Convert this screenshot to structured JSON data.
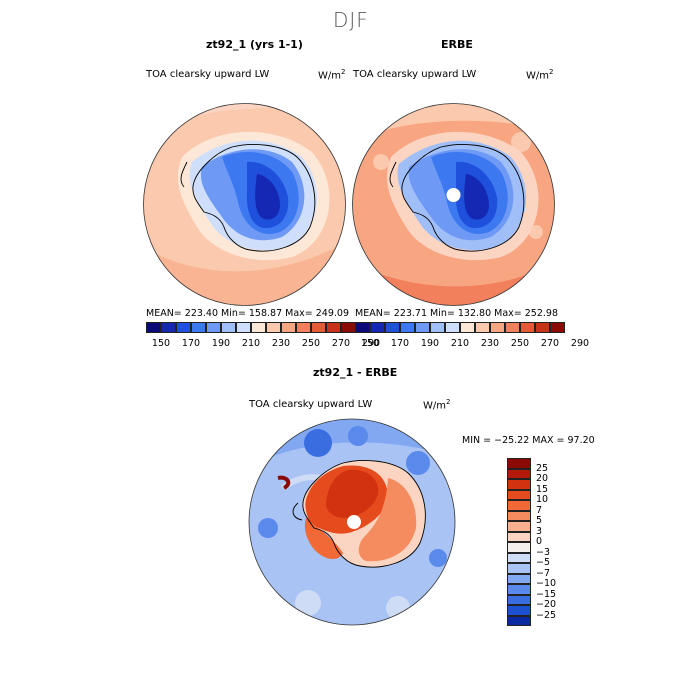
{
  "figure": {
    "main_title": "DJF"
  },
  "panels": [
    {
      "id": "model",
      "title": "zt92_1 (yrs 1-1)",
      "variable": "TOA clearsky upward LW",
      "units_base": "W/m",
      "units_exp": "2",
      "stats": "MEAN= 223.40   Min= 158.87   Max= 249.09"
    },
    {
      "id": "obs",
      "title": "ERBE",
      "variable": "TOA clearsky upward LW",
      "units_base": "W/m",
      "units_exp": "2",
      "stats": "MEAN= 223.71   Min= 132.80   Max= 252.98"
    }
  ],
  "diff_panel": {
    "title": "zt92_1 - ERBE",
    "variable": "TOA clearsky upward LW",
    "units_base": "W/m",
    "units_exp": "2",
    "stats": "MIN = −25.22  MAX =  97.20"
  },
  "chart_data": [
    {
      "type": "heatmap",
      "title": "zt92_1 (yrs 1-1)",
      "projection": "south polar stereographic",
      "colorbar": {
        "orientation": "horizontal",
        "tick_labels": [
          "150",
          "170",
          "190",
          "210",
          "230",
          "250",
          "270",
          "290"
        ],
        "colors": [
          "#0a0a78",
          "#1428b4",
          "#1e50dc",
          "#3c78f0",
          "#6e9af5",
          "#a0bef8",
          "#cfdffb",
          "#fde8d8",
          "#fbc9ad",
          "#f8a682",
          "#f2805c",
          "#e55a37",
          "#c8321a",
          "#8c0a05"
        ]
      },
      "stats": {
        "mean": 223.4,
        "min": 158.87,
        "max": 249.09
      }
    },
    {
      "type": "heatmap",
      "title": "ERBE",
      "projection": "south polar stereographic",
      "colorbar": {
        "orientation": "horizontal",
        "tick_labels": [
          "150",
          "170",
          "190",
          "210",
          "230",
          "250",
          "270",
          "290"
        ],
        "colors": [
          "#0a0a78",
          "#1428b4",
          "#1e50dc",
          "#3c78f0",
          "#6e9af5",
          "#a0bef8",
          "#cfdffb",
          "#fde8d8",
          "#fbc9ad",
          "#f8a682",
          "#f2805c",
          "#e55a37",
          "#c8321a",
          "#8c0a05"
        ]
      },
      "stats": {
        "mean": 223.71,
        "min": 132.8,
        "max": 252.98
      }
    },
    {
      "type": "heatmap",
      "title": "zt92_1 - ERBE",
      "projection": "south polar stereographic",
      "colorbar": {
        "orientation": "vertical",
        "tick_labels": [
          "25",
          "20",
          "15",
          "10",
          "7",
          "5",
          "3",
          "0",
          "−3",
          "−5",
          "−7",
          "−10",
          "−15",
          "−20",
          "−25"
        ],
        "colors": [
          "#8c0a05",
          "#b4190a",
          "#d2320f",
          "#e64b1e",
          "#f06937",
          "#f58c5f",
          "#f8b08f",
          "#fbd5c1",
          "#f5f0eb",
          "#cfdcf5",
          "#a9c3f5",
          "#82a8f2",
          "#5a8aeb",
          "#3a6ee0",
          "#1e50d2",
          "#0a28a0"
        ]
      },
      "stats": {
        "min": -25.22,
        "max": 97.2
      }
    }
  ]
}
